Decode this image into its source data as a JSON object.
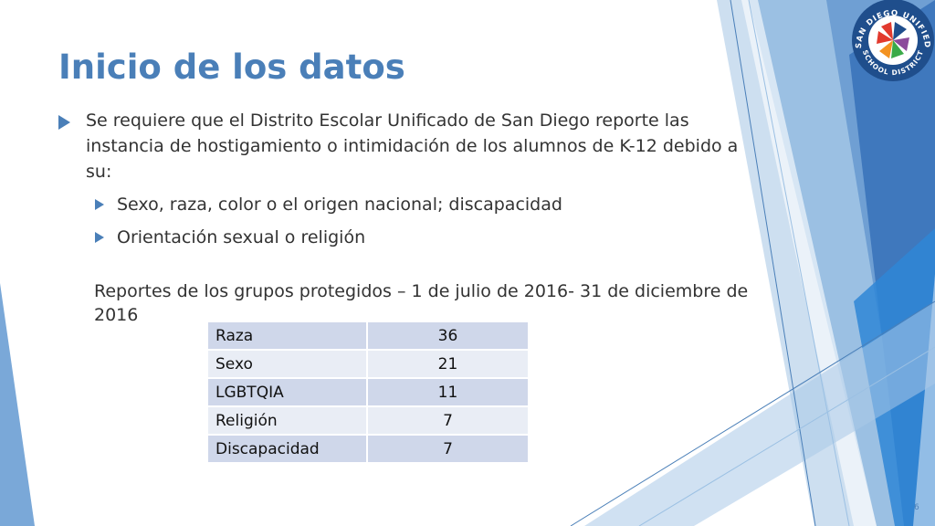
{
  "slide": {
    "title": "Inicio de los datos",
    "bullet_main": "Se requiere que el Distrito Escolar Unificado de San Diego reporte las instancia de hostigamiento o intimidación de los alumnos de K-12 debido a su:",
    "sub_bullets": [
      "Sexo, raza, color o el origen nacional; discapacidad",
      "Orientación sexual o religión"
    ],
    "report_text": "Reportes de los grupos protegidos – 1 de julio de 2016- 31 de diciembre de 2016",
    "page_number": "6"
  },
  "table": {
    "rows": [
      {
        "label": "Raza",
        "value": "36"
      },
      {
        "label": "Sexo",
        "value": "21"
      },
      {
        "label": "LGBTQIA",
        "value": "11"
      },
      {
        "label": "Religión",
        "value": "7"
      },
      {
        "label": "Discapacidad",
        "value": "7"
      }
    ]
  },
  "logo": {
    "arc_text_top": "SAN DIEGO UNIFIED",
    "arc_text_bottom": "SCHOOL DISTRICT"
  },
  "colors": {
    "accent": "#4a7fb8",
    "table_row_dark": "#cfd7ea",
    "table_row_light": "#e9edf5",
    "logo_red": "#e23a2e",
    "logo_orange": "#f39221",
    "logo_green": "#3aaa48",
    "logo_purple": "#8c4a9b",
    "logo_navy": "#1f4e8c"
  }
}
